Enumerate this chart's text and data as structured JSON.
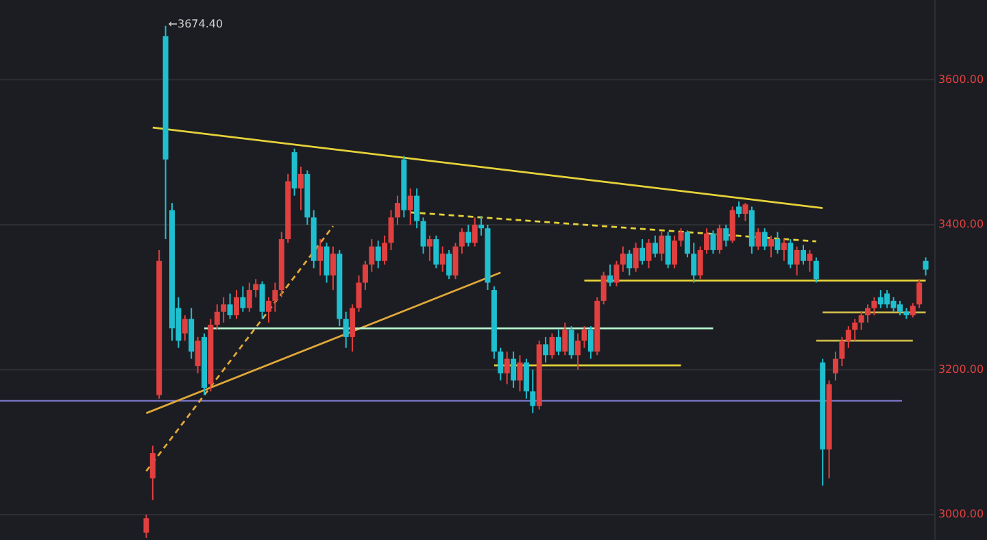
{
  "chart_data": {
    "type": "candlestick",
    "categories": [
      null,
      null,
      null,
      null,
      null,
      null,
      null,
      null,
      null,
      null,
      null,
      null,
      null,
      null,
      null,
      null,
      null,
      null,
      null,
      null,
      null,
      null,
      null,
      null,
      null,
      null,
      null,
      null,
      null,
      null,
      null,
      null,
      null,
      null,
      null,
      null,
      null,
      null,
      null,
      null,
      null,
      null,
      null,
      null,
      null,
      null,
      null,
      null,
      null,
      null,
      null,
      null,
      null,
      null,
      null,
      null,
      null,
      null,
      null,
      null,
      null,
      null,
      null,
      null,
      null,
      null,
      null,
      null,
      null,
      null,
      null,
      null,
      null,
      null,
      null,
      null,
      null,
      null,
      null,
      null,
      null,
      null,
      null,
      null,
      null,
      null,
      null,
      null,
      null,
      null,
      null,
      null,
      null,
      null,
      null,
      null,
      null,
      null,
      null,
      null,
      null,
      null,
      null,
      null,
      null,
      null,
      null,
      null,
      null,
      null,
      null,
      null,
      null,
      null,
      null,
      null,
      null,
      null,
      null,
      null,
      null,
      null
    ],
    "colors": [
      "#e0403f",
      "#e0403f",
      "#e0403f",
      "#1fbfcf",
      "#1fbfcf",
      "#1fbfcf",
      "#e0403f",
      "#1fbfcf",
      "#e0403f",
      "#1fbfcf",
      "#e0403f",
      "#e0403f",
      "#e0403f",
      "#1fbfcf",
      "#e0403f",
      "#1fbfcf",
      "#e0403f",
      "#e0403f",
      "#1fbfcf",
      "#e0403f",
      "#e0403f",
      "#e0403f",
      "#e0403f",
      "#1fbfcf",
      "#e0403f",
      "#1fbfcf",
      "#1fbfcf",
      "#e0403f",
      "#1fbfcf",
      "#e0403f",
      "#1fbfcf",
      "#1fbfcf",
      "#e0403f",
      "#e0403f",
      "#e0403f",
      "#e0403f",
      "#1fbfcf",
      "#e0403f",
      "#e0403f",
      "#e0403f",
      "#1fbfcf",
      "#e0403f",
      "#1fbfcf",
      "#1fbfcf",
      "#e0403f",
      "#1fbfcf",
      "#e0403f",
      "#1fbfcf",
      "#e0403f",
      "#e0403f",
      "#1fbfcf",
      "#e0403f",
      "#1fbfcf",
      "#1fbfcf",
      "#1fbfcf",
      "#1fbfcf",
      "#e0403f",
      "#1fbfcf",
      "#e0403f",
      "#1fbfcf",
      "#1fbfcf",
      "#e0403f",
      "#1fbfcf",
      "#e0403f",
      "#1fbfcf",
      "#e0403f",
      "#1fbfcf",
      "#e0403f",
      "#e0403f",
      "#1fbfcf",
      "#e0403f",
      "#e0403f",
      "#1fbfcf",
      "#e0403f",
      "#e0403f",
      "#1fbfcf",
      "#e0403f",
      "#1fbfcf",
      "#e0403f",
      "#1fbfcf",
      "#e0403f",
      "#1fbfcf",
      "#e0403f",
      "#e0403f",
      "#1fbfcf",
      "#1fbfcf",
      "#e0403f",
      "#e0403f",
      "#1fbfcf",
      "#e0403f",
      "#1fbfcf",
      "#e0403f",
      "#1fbfcf",
      "#e0403f",
      "#1fbfcf",
      "#e0403f",
      "#1fbfcf",
      "#e0403f",
      "#1fbfcf",
      "#e0403f",
      "#1fbfcf",
      "#e0403f",
      "#1fbfcf",
      "#e0403f",
      "#1fbfcf",
      "#1fbfcf",
      "#e0403f",
      "#e0403f",
      "#e0403f",
      "#e0403f",
      "#e0403f",
      "#e0403f",
      "#e0403f",
      "#e0403f",
      "#1fbfcf",
      "#1fbfcf",
      "#1fbfcf",
      "#1fbfcf",
      "#1fbfcf",
      "#e0403f",
      "#e0403f",
      "#1fbfcf"
    ],
    "ohlc": [
      [
        2975,
        3000,
        2968,
        2995
      ],
      [
        3050,
        3095,
        3020,
        3085
      ],
      [
        3165,
        3365,
        3160,
        3350
      ],
      [
        3660,
        3674.4,
        3380,
        3490
      ],
      [
        3420,
        3430,
        3240,
        3257
      ],
      [
        3285,
        3300,
        3230,
        3240
      ],
      [
        3250,
        3275,
        3240,
        3270
      ],
      [
        3270,
        3285,
        3215,
        3225
      ],
      [
        3205,
        3245,
        3195,
        3240
      ],
      [
        3245,
        3250,
        3165,
        3175
      ],
      [
        3180,
        3270,
        3170,
        3262
      ],
      [
        3262,
        3290,
        3255,
        3280
      ],
      [
        3280,
        3300,
        3265,
        3290
      ],
      [
        3290,
        3305,
        3270,
        3275
      ],
      [
        3275,
        3310,
        3270,
        3300
      ],
      [
        3300,
        3315,
        3280,
        3285
      ],
      [
        3285,
        3320,
        3280,
        3310
      ],
      [
        3310,
        3325,
        3300,
        3318
      ],
      [
        3318,
        3322,
        3270,
        3280
      ],
      [
        3280,
        3300,
        3265,
        3295
      ],
      [
        3295,
        3320,
        3280,
        3310
      ],
      [
        3310,
        3390,
        3300,
        3380
      ],
      [
        3380,
        3470,
        3375,
        3460
      ],
      [
        3500,
        3505,
        3440,
        3450
      ],
      [
        3450,
        3480,
        3420,
        3470
      ],
      [
        3470,
        3475,
        3400,
        3410
      ],
      [
        3410,
        3420,
        3340,
        3350
      ],
      [
        3350,
        3380,
        3330,
        3370
      ],
      [
        3370,
        3375,
        3320,
        3330
      ],
      [
        3330,
        3370,
        3310,
        3360
      ],
      [
        3360,
        3365,
        3260,
        3270
      ],
      [
        3270,
        3280,
        3230,
        3245
      ],
      [
        3245,
        3290,
        3225,
        3285
      ],
      [
        3285,
        3330,
        3280,
        3320
      ],
      [
        3320,
        3350,
        3310,
        3345
      ],
      [
        3345,
        3380,
        3335,
        3370
      ],
      [
        3370,
        3378,
        3340,
        3350
      ],
      [
        3350,
        3385,
        3345,
        3375
      ],
      [
        3375,
        3420,
        3365,
        3410
      ],
      [
        3410,
        3440,
        3400,
        3430
      ],
      [
        3490,
        3495,
        3410,
        3420
      ],
      [
        3420,
        3450,
        3400,
        3440
      ],
      [
        3440,
        3450,
        3395,
        3405
      ],
      [
        3405,
        3410,
        3360,
        3370
      ],
      [
        3370,
        3385,
        3350,
        3380
      ],
      [
        3380,
        3385,
        3340,
        3345
      ],
      [
        3345,
        3370,
        3335,
        3360
      ],
      [
        3360,
        3365,
        3325,
        3330
      ],
      [
        3330,
        3375,
        3325,
        3370
      ],
      [
        3370,
        3395,
        3360,
        3390
      ],
      [
        3390,
        3400,
        3370,
        3375
      ],
      [
        3375,
        3410,
        3370,
        3400
      ],
      [
        3400,
        3412,
        3385,
        3395
      ],
      [
        3395,
        3400,
        3310,
        3320
      ],
      [
        3310,
        3315,
        3215,
        3225
      ],
      [
        3225,
        3230,
        3185,
        3195
      ],
      [
        3195,
        3225,
        3180,
        3215
      ],
      [
        3215,
        3225,
        3175,
        3185
      ],
      [
        3185,
        3220,
        3170,
        3210
      ],
      [
        3210,
        3215,
        3160,
        3170
      ],
      [
        3170,
        3200,
        3140,
        3150
      ],
      [
        3150,
        3240,
        3145,
        3235
      ],
      [
        3235,
        3245,
        3210,
        3220
      ],
      [
        3220,
        3250,
        3215,
        3245
      ],
      [
        3245,
        3255,
        3220,
        3225
      ],
      [
        3225,
        3265,
        3220,
        3255
      ],
      [
        3255,
        3260,
        3215,
        3220
      ],
      [
        3220,
        3250,
        3200,
        3240
      ],
      [
        3240,
        3260,
        3230,
        3255
      ],
      [
        3255,
        3260,
        3215,
        3225
      ],
      [
        3225,
        3300,
        3220,
        3295
      ],
      [
        3295,
        3335,
        3290,
        3330
      ],
      [
        3330,
        3345,
        3315,
        3320
      ],
      [
        3320,
        3350,
        3315,
        3345
      ],
      [
        3345,
        3370,
        3335,
        3360
      ],
      [
        3360,
        3365,
        3330,
        3340
      ],
      [
        3340,
        3375,
        3335,
        3368
      ],
      [
        3368,
        3380,
        3345,
        3350
      ],
      [
        3350,
        3380,
        3340,
        3375
      ],
      [
        3375,
        3385,
        3355,
        3360
      ],
      [
        3360,
        3390,
        3350,
        3385
      ],
      [
        3385,
        3390,
        3340,
        3345
      ],
      [
        3345,
        3385,
        3340,
        3378
      ],
      [
        3378,
        3395,
        3370,
        3390
      ],
      [
        3390,
        3392,
        3355,
        3360
      ],
      [
        3360,
        3375,
        3320,
        3330
      ],
      [
        3330,
        3370,
        3325,
        3365
      ],
      [
        3365,
        3395,
        3360,
        3388
      ],
      [
        3388,
        3392,
        3360,
        3365
      ],
      [
        3365,
        3400,
        3360,
        3395
      ],
      [
        3395,
        3400,
        3370,
        3378
      ],
      [
        3378,
        3425,
        3375,
        3420
      ],
      [
        3425,
        3432,
        3410,
        3415
      ],
      [
        3415,
        3430,
        3405,
        3428
      ],
      [
        3420,
        3425,
        3360,
        3370
      ],
      [
        3370,
        3395,
        3365,
        3390
      ],
      [
        3390,
        3395,
        3365,
        3370
      ],
      [
        3370,
        3385,
        3355,
        3380
      ],
      [
        3380,
        3390,
        3360,
        3365
      ],
      [
        3365,
        3380,
        3350,
        3375
      ],
      [
        3375,
        3380,
        3340,
        3345
      ],
      [
        3345,
        3370,
        3330,
        3365
      ],
      [
        3365,
        3372,
        3345,
        3350
      ],
      [
        3350,
        3365,
        3335,
        3360
      ],
      [
        3350,
        3355,
        3320,
        3325
      ],
      [
        3210,
        3215,
        3040,
        3090
      ],
      [
        3090,
        3185,
        3050,
        3180
      ],
      [
        3195,
        3225,
        3185,
        3215
      ],
      [
        3215,
        3245,
        3205,
        3240
      ],
      [
        3240,
        3260,
        3230,
        3255
      ],
      [
        3255,
        3270,
        3240,
        3265
      ],
      [
        3265,
        3280,
        3255,
        3275
      ],
      [
        3275,
        3290,
        3265,
        3285
      ],
      [
        3285,
        3300,
        3275,
        3295
      ],
      [
        3300,
        3310,
        3285,
        3290
      ],
      [
        3305,
        3310,
        3285,
        3290
      ],
      [
        3295,
        3300,
        3280,
        3285
      ],
      [
        3290,
        3295,
        3275,
        3280
      ],
      [
        3280,
        3285,
        3270,
        3275
      ],
      [
        3275,
        3292,
        3272,
        3288
      ],
      [
        3290,
        3325,
        3285,
        3320
      ],
      [
        3350,
        3355,
        3330,
        3338
      ]
    ],
    "series": [
      {
        "type": "line",
        "color": "#e6d23a",
        "line_style": "solid",
        "values": [
          null,
          3534,
          null,
          null,
          null,
          null,
          null,
          null,
          null,
          null,
          null,
          null,
          null,
          null,
          null,
          null,
          null,
          null,
          null,
          null,
          null,
          null,
          null,
          null,
          null,
          null,
          null,
          null,
          null,
          null,
          null,
          null,
          null,
          null,
          null,
          null,
          null,
          null,
          null,
          null,
          null,
          null,
          null,
          null,
          null,
          null,
          null,
          null,
          null,
          null,
          null,
          null,
          null,
          null,
          null,
          null,
          null,
          null,
          null,
          null,
          null,
          null,
          null,
          null,
          null,
          null,
          null,
          null,
          null,
          null,
          null,
          null,
          null,
          null,
          null,
          null,
          null,
          null,
          null,
          null,
          null,
          null,
          null,
          null,
          null,
          null,
          null,
          null,
          null,
          null,
          null,
          null,
          null,
          null,
          null,
          null,
          null,
          null,
          null,
          null,
          null,
          null,
          null,
          null,
          null,
          3423,
          null,
          null,
          null,
          null,
          null,
          null,
          null,
          null,
          null,
          null,
          null,
          null,
          null,
          null,
          null,
          null
        ]
      },
      {
        "type": "line",
        "color": "#e6d23a",
        "line_style": "dashed",
        "values": [
          null,
          null,
          null,
          null,
          null,
          null,
          null,
          null,
          null,
          null,
          null,
          null,
          null,
          null,
          null,
          null,
          null,
          null,
          null,
          null,
          null,
          null,
          null,
          null,
          null,
          null,
          null,
          null,
          null,
          null,
          null,
          null,
          null,
          null,
          null,
          null,
          null,
          null,
          null,
          null,
          null,
          3417,
          null,
          null,
          null,
          null,
          null,
          null,
          null,
          null,
          null,
          null,
          null,
          null,
          null,
          null,
          null,
          null,
          null,
          null,
          null,
          null,
          null,
          null,
          null,
          null,
          null,
          null,
          null,
          null,
          null,
          null,
          null,
          null,
          null,
          null,
          null,
          null,
          null,
          null,
          null,
          null,
          null,
          null,
          null,
          null,
          null,
          null,
          null,
          null,
          null,
          null,
          null,
          null,
          null,
          null,
          null,
          null,
          null,
          null,
          null,
          null,
          null,
          null,
          3377,
          null,
          null,
          null,
          null,
          null,
          null,
          null,
          null,
          null,
          null,
          null,
          null,
          null,
          null,
          null,
          null,
          null
        ]
      },
      {
        "type": "line",
        "color": "#e0a83a",
        "line_style": "solid",
        "values": [
          3140,
          null,
          null,
          null,
          null,
          null,
          null,
          null,
          null,
          null,
          null,
          null,
          null,
          null,
          null,
          null,
          null,
          null,
          null,
          null,
          null,
          null,
          null,
          null,
          null,
          null,
          null,
          null,
          null,
          null,
          null,
          null,
          null,
          null,
          null,
          null,
          null,
          null,
          null,
          null,
          null,
          null,
          null,
          null,
          null,
          null,
          null,
          null,
          null,
          null,
          null,
          null,
          null,
          null,
          null,
          3334,
          null,
          null,
          null,
          null,
          null,
          null,
          null,
          null,
          null,
          null,
          null,
          null,
          null,
          null,
          null,
          null,
          null,
          null,
          null,
          null,
          null,
          null,
          null,
          null,
          null,
          null,
          null,
          null,
          null,
          null,
          null,
          null,
          null,
          null,
          null,
          null,
          null,
          null,
          null,
          null,
          null,
          null,
          null,
          null,
          null,
          null,
          null,
          null,
          null,
          null,
          null,
          null,
          null,
          null,
          null,
          null,
          null,
          null,
          null,
          null,
          null,
          null,
          null,
          null,
          null,
          null
        ]
      },
      {
        "type": "line",
        "color": "#e0a83a",
        "line_style": "dashed",
        "values": [
          3060,
          null,
          null,
          null,
          null,
          null,
          null,
          null,
          null,
          null,
          null,
          null,
          null,
          null,
          null,
          null,
          null,
          null,
          null,
          null,
          null,
          null,
          null,
          null,
          null,
          null,
          null,
          null,
          null,
          3398,
          null,
          null,
          null,
          null,
          null,
          null,
          null,
          null,
          null,
          null,
          null,
          null,
          null,
          null,
          null,
          null,
          null,
          null,
          null,
          null,
          null,
          null,
          null,
          null,
          null,
          null,
          null,
          null,
          null,
          null,
          null,
          null,
          null,
          null,
          null,
          null,
          null,
          null,
          null,
          null,
          null,
          null,
          null,
          null,
          null,
          null,
          null,
          null,
          null,
          null,
          null,
          null,
          null,
          null,
          null,
          null,
          null,
          null,
          null,
          null,
          null,
          null,
          null,
          null,
          null,
          null,
          null,
          null,
          null,
          null,
          null,
          null,
          null,
          null,
          null,
          null,
          null,
          null,
          null,
          null,
          null,
          null,
          null,
          null,
          null,
          null,
          null,
          null,
          null,
          null,
          null,
          null
        ]
      },
      {
        "type": "line",
        "color": "#b6f5d0",
        "line_style": "solid",
        "values": [
          null,
          null,
          null,
          null,
          null,
          null,
          null,
          null,
          null,
          3257,
          null,
          null,
          null,
          null,
          null,
          null,
          null,
          null,
          null,
          null,
          null,
          null,
          null,
          null,
          null,
          null,
          null,
          null,
          null,
          null,
          null,
          null,
          null,
          null,
          null,
          null,
          null,
          null,
          null,
          null,
          null,
          null,
          null,
          null,
          null,
          null,
          null,
          null,
          null,
          null,
          null,
          null,
          null,
          null,
          null,
          null,
          null,
          null,
          null,
          null,
          null,
          null,
          null,
          null,
          null,
          null,
          null,
          null,
          null,
          null,
          null,
          null,
          null,
          null,
          null,
          null,
          null,
          null,
          null,
          null,
          null,
          null,
          null,
          null,
          null,
          null,
          null,
          null,
          3257,
          null,
          null,
          null,
          null,
          null,
          null,
          null,
          null,
          null,
          null,
          null,
          null,
          null,
          null,
          null,
          null,
          null,
          null,
          null,
          null,
          null,
          null,
          null,
          null,
          null,
          null,
          null,
          null,
          null,
          null,
          null,
          null,
          null
        ]
      },
      {
        "type": "line",
        "color": "#e6d23a",
        "line_style": "solid",
        "values": [
          null,
          null,
          null,
          null,
          null,
          null,
          null,
          null,
          null,
          null,
          null,
          null,
          null,
          null,
          null,
          null,
          null,
          null,
          null,
          null,
          null,
          null,
          null,
          null,
          null,
          null,
          null,
          null,
          null,
          null,
          null,
          null,
          null,
          null,
          null,
          null,
          null,
          null,
          null,
          null,
          null,
          null,
          null,
          null,
          null,
          null,
          null,
          null,
          null,
          null,
          null,
          null,
          null,
          null,
          3206,
          null,
          null,
          null,
          null,
          null,
          null,
          null,
          null,
          null,
          null,
          null,
          null,
          null,
          null,
          null,
          null,
          null,
          null,
          null,
          null,
          null,
          null,
          null,
          null,
          null,
          null,
          null,
          null,
          3206,
          null,
          null,
          null,
          null,
          null,
          null,
          null,
          null,
          null,
          null,
          null,
          null,
          null,
          null,
          null,
          null,
          null,
          null,
          null,
          null,
          null,
          null,
          null,
          null,
          null,
          null,
          null,
          null,
          null,
          null,
          null,
          null,
          null,
          null,
          null,
          null,
          null,
          null
        ]
      },
      {
        "type": "line",
        "color": "#e6d23a",
        "line_style": "solid",
        "values": [
          null,
          null,
          null,
          null,
          null,
          null,
          null,
          null,
          null,
          null,
          null,
          null,
          null,
          null,
          null,
          null,
          null,
          null,
          null,
          null,
          null,
          null,
          null,
          null,
          null,
          null,
          null,
          null,
          null,
          null,
          null,
          null,
          null,
          null,
          null,
          null,
          null,
          null,
          null,
          null,
          null,
          null,
          null,
          null,
          null,
          null,
          null,
          null,
          null,
          null,
          null,
          null,
          null,
          null,
          null,
          null,
          null,
          null,
          null,
          null,
          null,
          null,
          null,
          null,
          null,
          null,
          null,
          null,
          3323,
          null,
          null,
          null,
          null,
          null,
          null,
          null,
          null,
          null,
          null,
          null,
          null,
          null,
          null,
          null,
          null,
          null,
          null,
          null,
          null,
          null,
          null,
          null,
          null,
          null,
          null,
          null,
          null,
          null,
          null,
          null,
          null,
          null,
          null,
          null,
          null,
          null,
          null,
          null,
          null,
          null,
          null,
          null,
          null,
          null,
          null,
          null,
          null,
          null,
          null,
          null,
          null,
          3323
        ]
      },
      {
        "type": "line",
        "color": "#c9b94a",
        "line_style": "solid",
        "values": [
          null,
          null,
          null,
          null,
          null,
          null,
          null,
          null,
          null,
          null,
          null,
          null,
          null,
          null,
          null,
          null,
          null,
          null,
          null,
          null,
          null,
          null,
          null,
          null,
          null,
          null,
          null,
          null,
          null,
          null,
          null,
          null,
          null,
          null,
          null,
          null,
          null,
          null,
          null,
          null,
          null,
          null,
          null,
          null,
          null,
          null,
          null,
          null,
          null,
          null,
          null,
          null,
          null,
          null,
          null,
          null,
          null,
          null,
          null,
          null,
          null,
          null,
          null,
          null,
          null,
          null,
          null,
          null,
          null,
          null,
          null,
          null,
          null,
          null,
          null,
          null,
          null,
          null,
          null,
          null,
          null,
          null,
          null,
          null,
          null,
          null,
          null,
          null,
          null,
          null,
          null,
          null,
          null,
          null,
          null,
          null,
          null,
          null,
          null,
          null,
          null,
          null,
          null,
          null,
          null,
          3279,
          null,
          null,
          null,
          null,
          null,
          null,
          null,
          null,
          null,
          null,
          null,
          null,
          null,
          null,
          null,
          3279
        ]
      },
      {
        "type": "line",
        "color": "#c9b94a",
        "line_style": "solid",
        "values": [
          null,
          null,
          null,
          null,
          null,
          null,
          null,
          null,
          null,
          null,
          null,
          null,
          null,
          null,
          null,
          null,
          null,
          null,
          null,
          null,
          null,
          null,
          null,
          null,
          null,
          null,
          null,
          null,
          null,
          null,
          null,
          null,
          null,
          null,
          null,
          null,
          null,
          null,
          null,
          null,
          null,
          null,
          null,
          null,
          null,
          null,
          null,
          null,
          null,
          null,
          null,
          null,
          null,
          null,
          null,
          null,
          null,
          null,
          null,
          null,
          null,
          null,
          null,
          null,
          null,
          null,
          null,
          null,
          null,
          null,
          null,
          null,
          null,
          null,
          null,
          null,
          null,
          null,
          null,
          null,
          null,
          null,
          null,
          null,
          null,
          null,
          null,
          null,
          null,
          null,
          null,
          null,
          null,
          null,
          null,
          null,
          null,
          null,
          null,
          null,
          null,
          null,
          null,
          null,
          3240,
          null,
          null,
          null,
          null,
          null,
          null,
          null,
          null,
          null,
          null,
          null,
          null,
          null,
          null,
          3240,
          null,
          null
        ]
      }
    ],
    "ref_lines": [
      {
        "axis": "y",
        "value": 3157,
        "color": "#7a74c9"
      }
    ],
    "annotations": [
      "←3674.40"
    ],
    "ylim": [
      2965,
      3710
    ],
    "yticks": [
      {
        "value": 3000,
        "label": "3000.00"
      },
      {
        "value": 3200,
        "label": "3200.00"
      },
      {
        "value": 3400,
        "label": "3400.00"
      },
      {
        "value": 3600,
        "label": "3600.00"
      }
    ],
    "grid": "y",
    "tick_labels": "y"
  }
}
